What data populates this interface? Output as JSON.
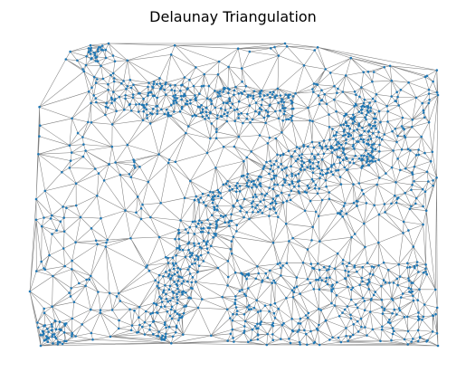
{
  "chart_data": {
    "type": "diagram",
    "title": "Delaunay Triangulation",
    "edge_color": "#808080",
    "point_color": "#1f77b4",
    "grid": false,
    "axes": "off"
  }
}
